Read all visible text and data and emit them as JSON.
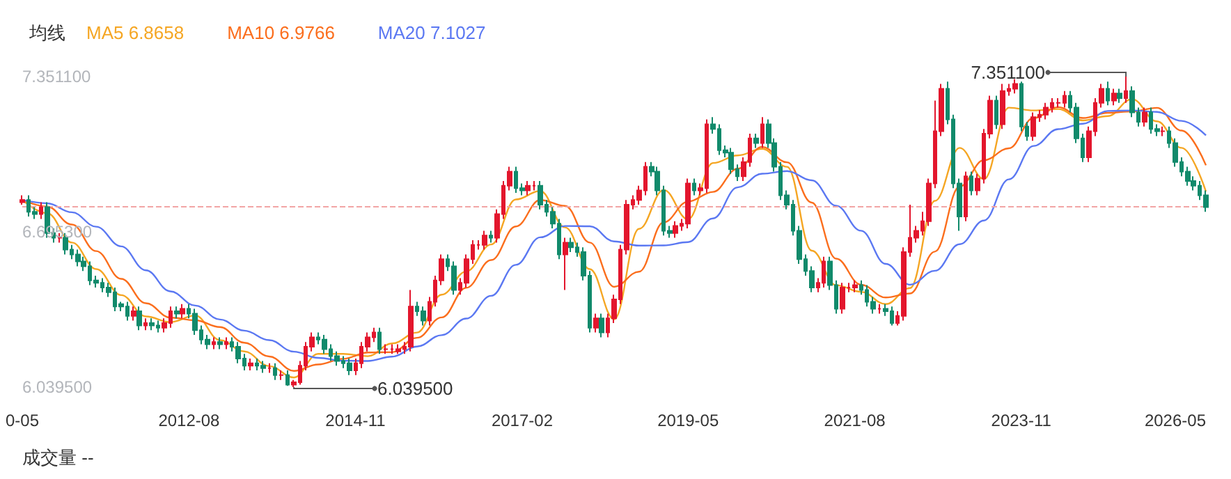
{
  "chart_data": {
    "type": "candlestick",
    "legend_title": "均线",
    "legend": "top left",
    "x": [
      "2010-05",
      "2010-06",
      "2010-07",
      "2010-08",
      "2010-09",
      "2010-10",
      "2010-11",
      "2010-12",
      "2011-01",
      "2011-02",
      "2011-03",
      "2011-04",
      "2011-05",
      "2011-06",
      "2011-07",
      "2011-08",
      "2011-09",
      "2011-10",
      "2011-11",
      "2011-12",
      "2012-01",
      "2012-02",
      "2012-03",
      "2012-04",
      "2012-05",
      "2012-06",
      "2012-07",
      "2012-08",
      "2012-09",
      "2012-10",
      "2012-11",
      "2012-12",
      "2013-01",
      "2013-02",
      "2013-03",
      "2013-04",
      "2013-05",
      "2013-06",
      "2013-07",
      "2013-08",
      "2013-09",
      "2013-10",
      "2013-11",
      "2013-12",
      "2014-01",
      "2014-02",
      "2014-03",
      "2014-04",
      "2014-05",
      "2014-06",
      "2014-07",
      "2014-08",
      "2014-09",
      "2014-10",
      "2014-11",
      "2014-12",
      "2015-01",
      "2015-02",
      "2015-03",
      "2015-04",
      "2015-05",
      "2015-06",
      "2015-07",
      "2015-08",
      "2015-09",
      "2015-10",
      "2015-11",
      "2015-12",
      "2016-01",
      "2016-02",
      "2016-03",
      "2016-04",
      "2016-05",
      "2016-06",
      "2016-07",
      "2016-08",
      "2016-09",
      "2016-10",
      "2016-11",
      "2016-12",
      "2017-01",
      "2017-02",
      "2017-03",
      "2017-04",
      "2017-05",
      "2017-06",
      "2017-07",
      "2017-08",
      "2017-09",
      "2017-10",
      "2017-11",
      "2017-12",
      "2018-01",
      "2018-02",
      "2018-03",
      "2018-04",
      "2018-05",
      "2018-06",
      "2018-07",
      "2018-08",
      "2018-09",
      "2018-10",
      "2018-11",
      "2018-12",
      "2019-01",
      "2019-02",
      "2019-03",
      "2019-04",
      "2019-05",
      "2019-06",
      "2019-07",
      "2019-08",
      "2019-09",
      "2019-10",
      "2019-11",
      "2019-12",
      "2020-01",
      "2020-02",
      "2020-03",
      "2020-04",
      "2020-05",
      "2020-06",
      "2020-07",
      "2020-08",
      "2020-09",
      "2020-10",
      "2020-11",
      "2020-12",
      "2021-01",
      "2021-02",
      "2021-03",
      "2021-04",
      "2021-05",
      "2021-06",
      "2021-07",
      "2021-08",
      "2021-09",
      "2021-10",
      "2021-11",
      "2021-12",
      "2022-01",
      "2022-02",
      "2022-03",
      "2022-04",
      "2022-05",
      "2022-06",
      "2022-07",
      "2022-08",
      "2022-09",
      "2022-10",
      "2022-11",
      "2022-12",
      "2023-01",
      "2023-02",
      "2023-03",
      "2023-04",
      "2023-05",
      "2023-06",
      "2023-07",
      "2023-08",
      "2023-09",
      "2023-10",
      "2023-11",
      "2023-12",
      "2024-01",
      "2024-02",
      "2024-03",
      "2024-04",
      "2024-05",
      "2024-06",
      "2024-07",
      "2024-08",
      "2024-09",
      "2024-10",
      "2024-11",
      "2024-12",
      "2025-01",
      "2025-02",
      "2025-03",
      "2025-04",
      "2025-05",
      "2025-06",
      "2025-07",
      "2025-08",
      "2025-09",
      "2025-10",
      "2025-11",
      "2025-12",
      "2026-01",
      "2026-02",
      "2026-03",
      "2026-04",
      "2026-05"
    ],
    "ohlc": [
      [
        6.82,
        6.85,
        6.81,
        6.83
      ],
      [
        6.83,
        6.85,
        6.76,
        6.78
      ],
      [
        6.78,
        6.8,
        6.75,
        6.77
      ],
      [
        6.77,
        6.82,
        6.75,
        6.8
      ],
      [
        6.8,
        6.82,
        6.67,
        6.69
      ],
      [
        6.69,
        6.71,
        6.65,
        6.67
      ],
      [
        6.67,
        6.69,
        6.65,
        6.67
      ],
      [
        6.67,
        6.69,
        6.6,
        6.62
      ],
      [
        6.62,
        6.64,
        6.58,
        6.6
      ],
      [
        6.6,
        6.62,
        6.55,
        6.57
      ],
      [
        6.57,
        6.59,
        6.53,
        6.55
      ],
      [
        6.55,
        6.57,
        6.47,
        6.49
      ],
      [
        6.49,
        6.51,
        6.46,
        6.48
      ],
      [
        6.48,
        6.5,
        6.44,
        6.46
      ],
      [
        6.46,
        6.48,
        6.42,
        6.44
      ],
      [
        6.44,
        6.46,
        6.36,
        6.38
      ],
      [
        6.39,
        6.4,
        6.36,
        6.38
      ],
      [
        6.38,
        6.4,
        6.32,
        6.34
      ],
      [
        6.34,
        6.38,
        6.32,
        6.36
      ],
      [
        6.36,
        6.38,
        6.28,
        6.3
      ],
      [
        6.3,
        6.33,
        6.28,
        6.31
      ],
      [
        6.31,
        6.33,
        6.28,
        6.3
      ],
      [
        6.3,
        6.32,
        6.27,
        6.29
      ],
      [
        6.29,
        6.33,
        6.27,
        6.31
      ],
      [
        6.31,
        6.38,
        6.29,
        6.36
      ],
      [
        6.36,
        6.38,
        6.33,
        6.35
      ],
      [
        6.35,
        6.39,
        6.33,
        6.37
      ],
      [
        6.37,
        6.39,
        6.33,
        6.35
      ],
      [
        6.35,
        6.37,
        6.26,
        6.28
      ],
      [
        6.28,
        6.3,
        6.22,
        6.24
      ],
      [
        6.24,
        6.26,
        6.2,
        6.22
      ],
      [
        6.22,
        6.25,
        6.2,
        6.23
      ],
      [
        6.23,
        6.25,
        6.2,
        6.22
      ],
      [
        6.22,
        6.25,
        6.2,
        6.23
      ],
      [
        6.23,
        6.25,
        6.19,
        6.21
      ],
      [
        6.21,
        6.23,
        6.14,
        6.16
      ],
      [
        6.16,
        6.18,
        6.11,
        6.13
      ],
      [
        6.13,
        6.16,
        6.11,
        6.14
      ],
      [
        6.14,
        6.16,
        6.11,
        6.13
      ],
      [
        6.13,
        6.15,
        6.1,
        6.12
      ],
      [
        6.12,
        6.14,
        6.1,
        6.12
      ],
      [
        6.12,
        6.14,
        6.07,
        6.09
      ],
      [
        6.09,
        6.11,
        6.07,
        6.09
      ],
      [
        6.09,
        6.11,
        6.045,
        6.05
      ],
      [
        6.05,
        6.07,
        6.0395,
        6.06
      ],
      [
        6.06,
        6.15,
        6.05,
        6.13
      ],
      [
        6.13,
        6.23,
        6.11,
        6.21
      ],
      [
        6.21,
        6.27,
        6.19,
        6.25
      ],
      [
        6.25,
        6.27,
        6.22,
        6.24
      ],
      [
        6.24,
        6.26,
        6.18,
        6.2
      ],
      [
        6.2,
        6.22,
        6.15,
        6.17
      ],
      [
        6.17,
        6.19,
        6.13,
        6.15
      ],
      [
        6.15,
        6.17,
        6.12,
        6.14
      ],
      [
        6.14,
        6.16,
        6.09,
        6.11
      ],
      [
        6.11,
        6.16,
        6.09,
        6.14
      ],
      [
        6.14,
        6.23,
        6.12,
        6.21
      ],
      [
        6.21,
        6.27,
        6.19,
        6.25
      ],
      [
        6.25,
        6.29,
        6.23,
        6.27
      ],
      [
        6.27,
        6.29,
        6.18,
        6.2
      ],
      [
        6.2,
        6.22,
        6.18,
        6.2
      ],
      [
        6.2,
        6.22,
        6.18,
        6.2
      ],
      [
        6.19,
        6.22,
        6.18,
        6.2
      ],
      [
        6.2,
        6.23,
        6.18,
        6.21
      ],
      [
        6.21,
        6.45,
        6.19,
        6.38
      ],
      [
        6.38,
        6.4,
        6.34,
        6.36
      ],
      [
        6.36,
        6.38,
        6.3,
        6.32
      ],
      [
        6.32,
        6.42,
        6.3,
        6.4
      ],
      [
        6.4,
        6.51,
        6.38,
        6.49
      ],
      [
        6.49,
        6.6,
        6.47,
        6.58
      ],
      [
        6.58,
        6.6,
        6.53,
        6.55
      ],
      [
        6.55,
        6.57,
        6.43,
        6.45
      ],
      [
        6.45,
        6.5,
        6.43,
        6.48
      ],
      [
        6.48,
        6.6,
        6.46,
        6.58
      ],
      [
        6.58,
        6.66,
        6.56,
        6.64
      ],
      [
        6.64,
        6.66,
        6.62,
        6.64
      ],
      [
        6.64,
        6.7,
        6.62,
        6.68
      ],
      [
        6.68,
        6.7,
        6.65,
        6.67
      ],
      [
        6.67,
        6.79,
        6.65,
        6.77
      ],
      [
        6.77,
        6.91,
        6.75,
        6.89
      ],
      [
        6.89,
        6.97,
        6.87,
        6.95
      ],
      [
        6.95,
        6.97,
        6.86,
        6.88
      ],
      [
        6.88,
        6.9,
        6.85,
        6.87
      ],
      [
        6.87,
        6.91,
        6.85,
        6.89
      ],
      [
        6.89,
        6.91,
        6.87,
        6.89
      ],
      [
        6.89,
        6.91,
        6.79,
        6.81
      ],
      [
        6.81,
        6.83,
        6.76,
        6.78
      ],
      [
        6.78,
        6.8,
        6.71,
        6.73
      ],
      [
        6.73,
        6.75,
        6.58,
        6.6
      ],
      [
        6.6,
        6.67,
        6.45,
        6.65
      ],
      [
        6.65,
        6.67,
        6.61,
        6.63
      ],
      [
        6.63,
        6.65,
        6.59,
        6.61
      ],
      [
        6.61,
        6.63,
        6.49,
        6.51
      ],
      [
        6.51,
        6.53,
        6.27,
        6.29
      ],
      [
        6.29,
        6.35,
        6.27,
        6.33
      ],
      [
        6.33,
        6.35,
        6.25,
        6.27
      ],
      [
        6.27,
        6.35,
        6.25,
        6.33
      ],
      [
        6.33,
        6.43,
        6.31,
        6.41
      ],
      [
        6.41,
        6.64,
        6.39,
        6.62
      ],
      [
        6.62,
        6.83,
        6.6,
        6.81
      ],
      [
        6.81,
        6.85,
        6.79,
        6.83
      ],
      [
        6.83,
        6.89,
        6.81,
        6.87
      ],
      [
        6.87,
        6.99,
        6.85,
        6.97
      ],
      [
        6.97,
        6.99,
        6.93,
        6.95
      ],
      [
        6.95,
        6.97,
        6.85,
        6.87
      ],
      [
        6.87,
        6.89,
        6.68,
        6.7
      ],
      [
        6.7,
        6.72,
        6.67,
        6.69
      ],
      [
        6.69,
        6.74,
        6.67,
        6.72
      ],
      [
        6.72,
        6.75,
        6.7,
        6.73
      ],
      [
        6.73,
        6.92,
        6.71,
        6.9
      ],
      [
        6.9,
        6.92,
        6.85,
        6.87
      ],
      [
        6.87,
        6.9,
        6.85,
        6.88
      ],
      [
        6.88,
        7.17,
        6.86,
        7.15
      ],
      [
        7.15,
        7.18,
        7.11,
        7.13
      ],
      [
        7.13,
        7.15,
        7.02,
        7.04
      ],
      [
        7.04,
        7.06,
        7.01,
        7.03
      ],
      [
        7.03,
        7.05,
        6.94,
        6.96
      ],
      [
        6.96,
        6.98,
        6.91,
        6.93
      ],
      [
        6.93,
        7.01,
        6.91,
        6.99
      ],
      [
        6.99,
        7.11,
        6.97,
        7.09
      ],
      [
        7.09,
        7.11,
        7.05,
        7.07
      ],
      [
        7.07,
        7.18,
        7.05,
        7.15
      ],
      [
        7.15,
        7.17,
        7.05,
        7.07
      ],
      [
        7.07,
        7.09,
        6.95,
        6.97
      ],
      [
        6.97,
        6.99,
        6.83,
        6.85
      ],
      [
        6.85,
        6.87,
        6.79,
        6.81
      ],
      [
        6.81,
        6.83,
        6.68,
        6.7
      ],
      [
        6.7,
        6.72,
        6.56,
        6.58
      ],
      [
        6.58,
        6.6,
        6.51,
        6.53
      ],
      [
        6.53,
        6.55,
        6.44,
        6.46
      ],
      [
        6.46,
        6.5,
        6.44,
        6.48
      ],
      [
        6.48,
        6.59,
        6.46,
        6.57
      ],
      [
        6.57,
        6.59,
        6.45,
        6.47
      ],
      [
        6.47,
        6.49,
        6.35,
        6.37
      ],
      [
        6.37,
        6.48,
        6.35,
        6.46
      ],
      [
        6.46,
        6.48,
        6.44,
        6.46
      ],
      [
        6.46,
        6.49,
        6.44,
        6.47
      ],
      [
        6.47,
        6.49,
        6.43,
        6.45
      ],
      [
        6.45,
        6.47,
        6.38,
        6.4
      ],
      [
        6.4,
        6.42,
        6.35,
        6.37
      ],
      [
        6.37,
        6.39,
        6.35,
        6.37
      ],
      [
        6.37,
        6.39,
        6.34,
        6.36
      ],
      [
        6.36,
        6.38,
        6.3,
        6.31
      ],
      [
        6.31,
        6.36,
        6.3,
        6.34
      ],
      [
        6.34,
        6.63,
        6.32,
        6.61
      ],
      [
        6.61,
        6.81,
        6.59,
        6.67
      ],
      [
        6.67,
        6.72,
        6.65,
        6.7
      ],
      [
        6.7,
        6.78,
        6.68,
        6.74
      ],
      [
        6.74,
        6.92,
        6.72,
        6.9
      ],
      [
        6.9,
        7.25,
        6.88,
        7.12
      ],
      [
        7.12,
        7.32,
        7.1,
        7.3
      ],
      [
        7.3,
        7.33,
        7.15,
        7.17
      ],
      [
        7.17,
        7.19,
        6.88,
        6.9
      ],
      [
        6.9,
        6.92,
        6.7,
        6.76
      ],
      [
        6.76,
        6.95,
        6.74,
        6.93
      ],
      [
        6.93,
        6.95,
        6.85,
        6.87
      ],
      [
        6.87,
        6.94,
        6.85,
        6.92
      ],
      [
        6.92,
        7.13,
        6.9,
        7.11
      ],
      [
        7.11,
        7.27,
        7.09,
        7.25
      ],
      [
        7.25,
        7.27,
        7.13,
        7.15
      ],
      [
        7.15,
        7.32,
        7.13,
        7.29
      ],
      [
        7.29,
        7.32,
        7.27,
        7.3
      ],
      [
        7.3,
        7.34,
        7.28,
        7.32
      ],
      [
        7.32,
        7.33,
        7.12,
        7.14
      ],
      [
        7.14,
        7.16,
        7.08,
        7.1
      ],
      [
        7.1,
        7.2,
        7.08,
        7.18
      ],
      [
        7.18,
        7.21,
        7.16,
        7.19
      ],
      [
        7.19,
        7.24,
        7.17,
        7.22
      ],
      [
        7.22,
        7.26,
        7.2,
        7.24
      ],
      [
        7.24,
        7.26,
        7.22,
        7.24
      ],
      [
        7.24,
        7.29,
        7.22,
        7.27
      ],
      [
        7.27,
        7.29,
        7.2,
        7.22
      ],
      [
        7.22,
        7.24,
        7.07,
        7.09
      ],
      [
        7.09,
        7.11,
        6.99,
        7.01
      ],
      [
        7.01,
        7.14,
        6.99,
        7.12
      ],
      [
        7.12,
        7.26,
        7.1,
        7.24
      ],
      [
        7.24,
        7.32,
        7.22,
        7.3
      ],
      [
        7.3,
        7.33,
        7.23,
        7.25
      ],
      [
        7.25,
        7.3,
        7.23,
        7.28
      ],
      [
        7.28,
        7.3,
        7.24,
        7.26
      ],
      [
        7.26,
        7.3511,
        7.24,
        7.29
      ],
      [
        7.29,
        7.31,
        7.18,
        7.2
      ],
      [
        7.2,
        7.22,
        7.14,
        7.16
      ],
      [
        7.16,
        7.22,
        7.14,
        7.2
      ],
      [
        7.2,
        7.22,
        7.11,
        7.13
      ],
      [
        7.13,
        7.15,
        7.1,
        7.12
      ],
      [
        7.12,
        7.14,
        7.1,
        7.12
      ],
      [
        7.12,
        7.14,
        7.05,
        7.07
      ],
      [
        7.07,
        7.09,
        6.97,
        6.99
      ],
      [
        6.99,
        7.01,
        6.93,
        6.95
      ],
      [
        6.95,
        6.97,
        6.89,
        6.91
      ],
      [
        6.91,
        6.93,
        6.87,
        6.89
      ],
      [
        6.89,
        6.91,
        6.83,
        6.85
      ],
      [
        6.85,
        6.87,
        6.78,
        6.8
      ]
    ],
    "series": [
      {
        "type": "line",
        "name": "MA5 6.8658",
        "color": "#f5a623",
        "x": [
          "2010-05",
          "2010-09",
          "2011-01",
          "2011-05",
          "2011-09",
          "2012-01",
          "2012-05",
          "2012-09",
          "2013-01",
          "2013-05",
          "2013-09",
          "2014-01",
          "2014-05",
          "2014-09",
          "2015-01",
          "2015-05",
          "2015-09",
          "2016-01",
          "2016-05",
          "2016-09",
          "2017-01",
          "2017-05",
          "2017-09",
          "2018-01",
          "2018-05",
          "2018-09",
          "2019-01",
          "2019-05",
          "2019-09",
          "2020-01",
          "2020-05",
          "2020-09",
          "2021-01",
          "2021-05",
          "2021-09",
          "2022-01",
          "2022-05",
          "2022-09",
          "2023-01",
          "2023-05",
          "2023-09",
          "2024-01",
          "2024-05",
          "2024-09",
          "2025-01",
          "2025-05",
          "2025-09",
          "2026-01",
          "2026-05"
        ],
        "values": [
          6.83,
          6.774,
          6.65,
          6.538,
          6.428,
          6.338,
          6.314,
          6.342,
          6.238,
          6.19,
          6.128,
          6.08,
          6.18,
          6.18,
          6.17,
          6.224,
          6.27,
          6.43,
          6.528,
          6.642,
          6.832,
          6.868,
          6.714,
          6.538,
          6.326,
          6.708,
          6.872,
          6.748,
          6.986,
          7.018,
          7.046,
          6.97,
          6.616,
          6.47,
          6.442,
          6.39,
          6.458,
          6.826,
          7.05,
          6.918,
          7.22,
          7.208,
          7.214,
          7.166,
          7.184,
          7.256,
          7.162,
          7.05,
          6.8658
        ]
      },
      {
        "type": "line",
        "name": "MA10 6.9766",
        "color": "#fb6e1d",
        "x": [
          "2010-05",
          "2010-09",
          "2011-01",
          "2011-05",
          "2011-09",
          "2012-01",
          "2012-05",
          "2012-09",
          "2013-01",
          "2013-05",
          "2013-09",
          "2014-01",
          "2014-05",
          "2014-09",
          "2015-01",
          "2015-05",
          "2015-09",
          "2016-01",
          "2016-05",
          "2016-09",
          "2017-01",
          "2017-05",
          "2017-09",
          "2018-01",
          "2018-05",
          "2018-09",
          "2019-01",
          "2019-05",
          "2019-09",
          "2020-01",
          "2020-05",
          "2020-09",
          "2021-01",
          "2021-05",
          "2021-09",
          "2022-01",
          "2022-05",
          "2022-09",
          "2023-01",
          "2023-05",
          "2023-09",
          "2024-01",
          "2024-05",
          "2024-09",
          "2025-01",
          "2025-05",
          "2025-09",
          "2026-01",
          "2026-05"
        ],
        "values": [
          6.83,
          6.802,
          6.726,
          6.614,
          6.497,
          6.394,
          6.333,
          6.322,
          6.293,
          6.227,
          6.169,
          6.108,
          6.135,
          6.159,
          6.186,
          6.187,
          6.248,
          6.334,
          6.459,
          6.576,
          6.718,
          6.83,
          6.805,
          6.65,
          6.463,
          6.527,
          6.736,
          6.823,
          6.864,
          6.962,
          7.054,
          6.989,
          6.819,
          6.582,
          6.472,
          6.418,
          6.435,
          6.612,
          6.887,
          6.998,
          7.048,
          7.176,
          7.222,
          7.176,
          7.198,
          7.204,
          7.219,
          7.123,
          6.9766
        ]
      },
      {
        "type": "line",
        "name": "MA20 7.1027",
        "color": "#5b78f2",
        "x": [
          "2010-05",
          "2010-09",
          "2011-01",
          "2011-05",
          "2011-09",
          "2012-01",
          "2012-05",
          "2012-09",
          "2013-01",
          "2013-05",
          "2013-09",
          "2014-01",
          "2014-05",
          "2014-09",
          "2015-01",
          "2015-05",
          "2015-09",
          "2016-01",
          "2016-05",
          "2016-09",
          "2017-01",
          "2017-05",
          "2017-09",
          "2018-01",
          "2018-05",
          "2018-09",
          "2019-01",
          "2019-05",
          "2019-09",
          "2020-01",
          "2020-05",
          "2020-09",
          "2021-01",
          "2021-05",
          "2021-09",
          "2022-01",
          "2022-05",
          "2022-09",
          "2023-01",
          "2023-05",
          "2023-09",
          "2024-01",
          "2024-05",
          "2024-09",
          "2025-01",
          "2025-05",
          "2025-09",
          "2026-01",
          "2026-05"
        ],
        "values": [
          6.83,
          6.816,
          6.778,
          6.717,
          6.634,
          6.533,
          6.444,
          6.384,
          6.325,
          6.278,
          6.238,
          6.189,
          6.163,
          6.151,
          6.15,
          6.168,
          6.211,
          6.259,
          6.329,
          6.425,
          6.556,
          6.672,
          6.72,
          6.719,
          6.655,
          6.637,
          6.638,
          6.652,
          6.752,
          6.883,
          6.941,
          6.952,
          6.913,
          6.806,
          6.7,
          6.56,
          6.472,
          6.531,
          6.643,
          6.743,
          6.917,
          7.058,
          7.129,
          7.152,
          7.206,
          7.208,
          7.202,
          7.164,
          7.1027
        ]
      }
    ],
    "xlim": [
      "2010-05",
      "2026-05"
    ],
    "xticks": [
      {
        "value": "2010-05",
        "label": "0-05"
      },
      {
        "value": "2012-08",
        "label": "2012-08"
      },
      {
        "value": "2014-11",
        "label": "2014-11"
      },
      {
        "value": "2017-02",
        "label": "2017-02"
      },
      {
        "value": "2019-05",
        "label": "2019-05"
      },
      {
        "value": "2021-08",
        "label": "2021-08"
      },
      {
        "value": "2023-11",
        "label": "2023-11"
      },
      {
        "value": "2026-05",
        "label": "2026-05"
      }
    ],
    "ylim": [
      6.0395,
      7.3511
    ],
    "yticks": [
      {
        "value": 6.0395,
        "label": "6.039500"
      },
      {
        "value": 6.6953,
        "label": "6.695300"
      },
      {
        "value": 7.3511,
        "label": "7.351100"
      }
    ],
    "ref_lines": [
      {
        "axis": "y",
        "value": 6.8,
        "color": "#f2a5a5",
        "line_style": "dashed"
      }
    ],
    "annotations": [
      {
        "text": "7.351100",
        "x": "2025-04",
        "y": 7.3511
      },
      {
        "text": "6.039500",
        "x": "2014-01",
        "y": 6.0395
      },
      "成交量 --"
    ]
  }
}
